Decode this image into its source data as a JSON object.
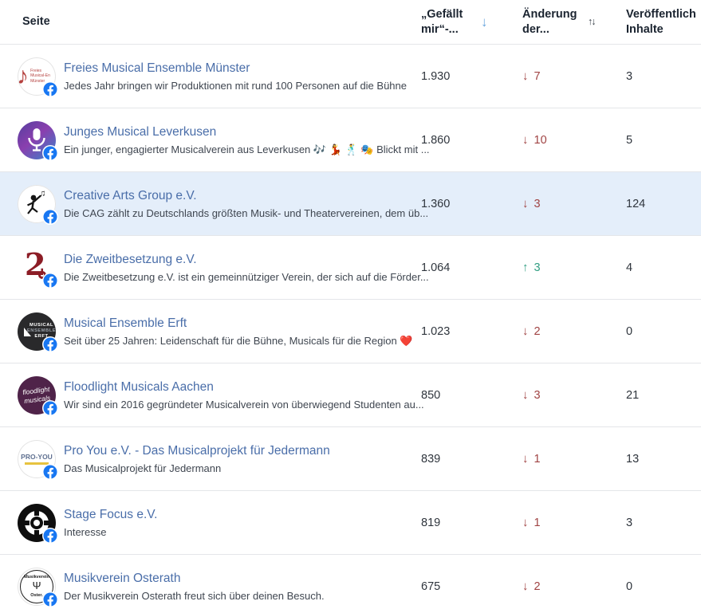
{
  "colors": {
    "link": "#4a6ea9",
    "header_text": "#1b2430",
    "body_text": "#3f4650",
    "value_text": "#2f353d",
    "down": "#a04343",
    "up": "#319e82",
    "row_highlight": "#e4eefa",
    "sort_active": "#6aa5de",
    "facebook_blue": "#1877f2",
    "divider": "#e4e6e9"
  },
  "header": {
    "sort_desc_glyph": "↓",
    "sort_both_glyph": "↑↓",
    "columns": [
      {
        "id": "page",
        "label": "Seite",
        "sort": null
      },
      {
        "id": "likes",
        "label": "„Gefällt mir“-...",
        "sort": "desc"
      },
      {
        "id": "change",
        "label": "Änderung der...",
        "sort": "none"
      },
      {
        "id": "published",
        "label": "Veröffentlich Inhalte",
        "sort": null
      }
    ]
  },
  "rows": [
    {
      "name": "Freies Musical Ensemble Münster",
      "description": "Jedes Jahr bringen wir Produktionen mit rund 100 Personen auf die Bühne",
      "likes": "1.930",
      "change_direction": "down",
      "change_value": "7",
      "published": "3",
      "highlighted": false,
      "avatar": {
        "kind": "treble-clef",
        "bg": "#ffffff",
        "fg": "#b5413f",
        "border": true
      }
    },
    {
      "name": "Junges Musical Leverkusen",
      "description": "Ein junger, engagierter Musicalverein aus Leverkusen 🎶 💃 🕺 🎭 Blickt mit ...",
      "likes": "1.860",
      "change_direction": "down",
      "change_value": "10",
      "published": "5",
      "highlighted": false,
      "avatar": {
        "kind": "microphone",
        "bg": "linear-gradient(140deg,#5a3fa0 5%,#8a3fae 45%,#3f7fc9 95%)",
        "fg": "#ffffff"
      }
    },
    {
      "name": "Creative Arts Group e.V.",
      "description": "Die CAG zählt zu Deutschlands größten Musik- und Theatervereinen, dem üb...",
      "likes": "1.360",
      "change_direction": "down",
      "change_value": "3",
      "published": "124",
      "highlighted": true,
      "avatar": {
        "kind": "dancer",
        "bg": "#ffffff",
        "fg": "#141414",
        "border": true
      }
    },
    {
      "name": "Die Zweitbesetzung e.V.",
      "description": "Die Zweitbesetzung e.V. ist ein gemeinnütziger Verein, der sich auf die Förder...",
      "likes": "1.064",
      "change_direction": "up",
      "change_value": "3",
      "published": "4",
      "highlighted": false,
      "avatar": {
        "kind": "numeral-2",
        "bg": "#ffffff",
        "fg": "#8c1d26"
      }
    },
    {
      "name": "Musical Ensemble Erft",
      "description": "Seit über 25 Jahren: Leidenschaft für die Bühne, Musicals für die Region ❤️",
      "likes": "1.023",
      "change_direction": "down",
      "change_value": "2",
      "published": "0",
      "highlighted": false,
      "avatar": {
        "kind": "erft-wordmark",
        "bg": "#29292b",
        "fg": "#ffffff",
        "lines": [
          "MUSICAL",
          "ENSEMBLE",
          "ERFT"
        ]
      }
    },
    {
      "name": "Floodlight Musicals Aachen",
      "description": "Wir sind ein 2016 gegründeter Musicalverein von überwiegend Studenten au...",
      "likes": "850",
      "change_direction": "down",
      "change_value": "3",
      "published": "21",
      "highlighted": false,
      "avatar": {
        "kind": "floodlight-script",
        "bg": "#4f2349",
        "fg": "#ffffff",
        "lines": [
          "floodlight",
          "musicals"
        ]
      }
    },
    {
      "name": "Pro You e.V. - Das Musicalprojekt für Jedermann",
      "description": "Das Musicalprojekt für Jedermann",
      "likes": "839",
      "change_direction": "down",
      "change_value": "1",
      "published": "13",
      "highlighted": false,
      "avatar": {
        "kind": "pro-you-wordmark",
        "bg": "#ffffff",
        "fg": "#5f7090",
        "accent": "#e7c33f",
        "lines": [
          "PRO-YOU"
        ],
        "border": true
      }
    },
    {
      "name": "Stage Focus e.V.",
      "description": "Interesse",
      "likes": "819",
      "change_direction": "down",
      "change_value": "1",
      "published": "3",
      "highlighted": false,
      "avatar": {
        "kind": "focus-reticle",
        "bg": "#0e0e0e",
        "fg": "#ffffff"
      }
    },
    {
      "name": "Musikverein Osterath",
      "description": "Der Musikverein Osterath freut sich über deinen Besuch.",
      "likes": "675",
      "change_direction": "down",
      "change_value": "2",
      "published": "0",
      "highlighted": false,
      "avatar": {
        "kind": "osterath-seal",
        "bg": "#ffffff",
        "fg": "#1c1c1c",
        "lines": [
          "Musikverein",
          "Oster."
        ],
        "border": true
      }
    }
  ]
}
